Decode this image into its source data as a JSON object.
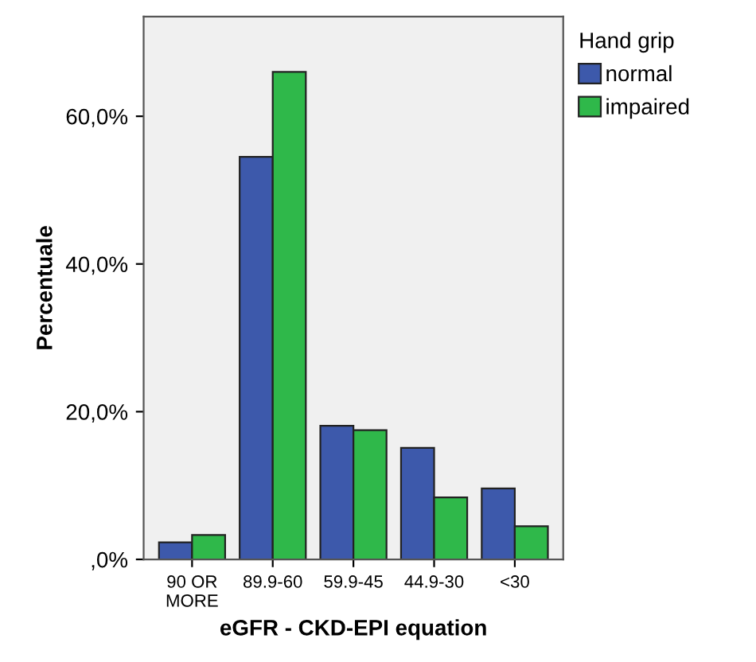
{
  "chart_data": {
    "type": "bar",
    "xlabel": "eGFR - CKD-EPI equation",
    "ylabel": "Percentuale",
    "legend_title": "Hand grip",
    "categories": [
      "90 OR\nMORE",
      "89.9-60",
      "59.9-45",
      "44.9-30",
      "<30"
    ],
    "series": [
      {
        "name": "normal",
        "color": "#3d59ab",
        "values": [
          2.3,
          54.5,
          18.1,
          15.1,
          9.6
        ]
      },
      {
        "name": "impaired",
        "color": "#2fb84a",
        "values": [
          3.3,
          66.0,
          17.5,
          8.4,
          4.5
        ]
      }
    ],
    "ylim": [
      0,
      73.5
    ],
    "yticks": [
      {
        "value": 0,
        "label": ",0%"
      },
      {
        "value": 20,
        "label": "20,0%"
      },
      {
        "value": 40,
        "label": "40,0%"
      },
      {
        "value": 60,
        "label": "60,0%"
      }
    ],
    "grid": false,
    "legend": "right"
  }
}
